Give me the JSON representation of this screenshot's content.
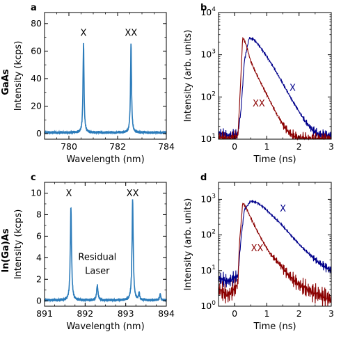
{
  "figure": {
    "row_labels": [
      "GaAs",
      "In(Ga)As"
    ],
    "colors": {
      "spectrum": "#2b7bba",
      "X": "#00008b",
      "XX": "#8b0000"
    }
  },
  "chart_data": [
    {
      "panel": "a",
      "type": "line",
      "xlabel": "Wavelength (nm)",
      "ylabel": "Intensity (kcps)",
      "xlim": [
        779,
        784
      ],
      "ylim": [
        -4,
        88
      ],
      "xticks": [
        780,
        782,
        784
      ],
      "yticks": [
        0,
        20,
        40,
        60,
        80
      ],
      "series": [
        {
          "peaks": [
            {
              "x": 780.6,
              "y": 65,
              "w": 0.025
            },
            {
              "x": 782.55,
              "y": 65,
              "w": 0.025
            }
          ],
          "baseline": 0.8
        }
      ],
      "annotations": [
        {
          "text": "X",
          "x": 780.6,
          "y": 71
        },
        {
          "text": "XX",
          "x": 782.55,
          "y": 71
        }
      ]
    },
    {
      "panel": "b",
      "type": "line",
      "yscale": "log",
      "xlabel": "Time (ns)",
      "ylabel": "Intensity (arb. units)",
      "xlim": [
        -0.5,
        3
      ],
      "ylim": [
        10,
        10000
      ],
      "xticks": [
        0,
        1,
        2,
        3
      ],
      "yticks": [
        10,
        100,
        1000,
        10000
      ],
      "series": [
        {
          "name": "X",
          "color": "#00008b",
          "points": [
            [
              -0.5,
              14
            ],
            [
              -0.2,
              12
            ],
            [
              0.1,
              13
            ],
            [
              0.2,
              50
            ],
            [
              0.3,
              700
            ],
            [
              0.45,
              2500
            ],
            [
              0.6,
              2300
            ],
            [
              0.8,
              1500
            ],
            [
              1.0,
              900
            ],
            [
              1.2,
              520
            ],
            [
              1.4,
              280
            ],
            [
              1.6,
              150
            ],
            [
              1.8,
              80
            ],
            [
              2.0,
              45
            ],
            [
              2.2,
              26
            ],
            [
              2.4,
              17
            ],
            [
              2.6,
              13
            ],
            [
              3.0,
              12
            ]
          ]
        },
        {
          "name": "XX",
          "color": "#8b0000",
          "points": [
            [
              -0.5,
              11
            ],
            [
              -0.2,
              10
            ],
            [
              0.1,
              12
            ],
            [
              0.15,
              60
            ],
            [
              0.25,
              2600
            ],
            [
              0.35,
              1800
            ],
            [
              0.5,
              700
            ],
            [
              0.7,
              320
            ],
            [
              0.9,
              160
            ],
            [
              1.1,
              80
            ],
            [
              1.3,
              40
            ],
            [
              1.5,
              22
            ],
            [
              1.7,
              14
            ],
            [
              1.9,
              11
            ],
            [
              2.2,
              10
            ],
            [
              3.0,
              10
            ]
          ]
        }
      ],
      "annotations": [
        {
          "text": "X",
          "x": 1.8,
          "y": 140,
          "color": "#00008b"
        },
        {
          "text": "XX",
          "x": 0.75,
          "y": 60,
          "color": "#8b0000"
        }
      ]
    },
    {
      "panel": "c",
      "type": "line",
      "xlabel": "Wavelength (nm)",
      "ylabel": "Intensity (kcps)",
      "xlim": [
        891,
        894
      ],
      "ylim": [
        -0.5,
        11
      ],
      "xticks": [
        891,
        892,
        893,
        894
      ],
      "yticks": [
        0,
        2,
        4,
        6,
        8,
        10
      ],
      "series": [
        {
          "peaks": [
            {
              "x": 891.65,
              "y": 8.7,
              "w": 0.018
            },
            {
              "x": 892.3,
              "y": 1.4,
              "w": 0.02
            },
            {
              "x": 893.17,
              "y": 9.3,
              "w": 0.018
            },
            {
              "x": 893.33,
              "y": 0.7,
              "w": 0.015
            },
            {
              "x": 893.85,
              "y": 0.6,
              "w": 0.015
            }
          ],
          "baseline": 0.05
        }
      ],
      "annotations": [
        {
          "text": "X",
          "x": 891.6,
          "y": 9.7
        },
        {
          "text": "XX",
          "x": 893.17,
          "y": 9.7
        },
        {
          "text": "Residual",
          "x": 892.3,
          "y": 3.8
        },
        {
          "text": "Laser",
          "x": 892.3,
          "y": 2.5
        }
      ]
    },
    {
      "panel": "d",
      "type": "line",
      "yscale": "log",
      "xlabel": "Time (ns)",
      "ylabel": "Intensity (arb. units)",
      "xlim": [
        -0.5,
        3
      ],
      "ylim": [
        1,
        3000
      ],
      "xticks": [
        0,
        1,
        2,
        3
      ],
      "yticks": [
        1,
        10,
        100,
        1000
      ],
      "series": [
        {
          "name": "X",
          "color": "#00008b",
          "points": [
            [
              -0.5,
              6
            ],
            [
              -0.2,
              5
            ],
            [
              0.1,
              7
            ],
            [
              0.2,
              80
            ],
            [
              0.3,
              500
            ],
            [
              0.5,
              900
            ],
            [
              0.7,
              800
            ],
            [
              0.9,
              600
            ],
            [
              1.1,
              400
            ],
            [
              1.4,
              220
            ],
            [
              1.7,
              110
            ],
            [
              2.0,
              55
            ],
            [
              2.3,
              30
            ],
            [
              2.6,
              17
            ],
            [
              3.0,
              10
            ]
          ]
        },
        {
          "name": "XX",
          "color": "#8b0000",
          "points": [
            [
              -0.5,
              3
            ],
            [
              -0.2,
              2
            ],
            [
              0.1,
              4
            ],
            [
              0.15,
              60
            ],
            [
              0.25,
              800
            ],
            [
              0.35,
              600
            ],
            [
              0.5,
              300
            ],
            [
              0.7,
              130
            ],
            [
              0.9,
              60
            ],
            [
              1.1,
              30
            ],
            [
              1.4,
              15
            ],
            [
              1.7,
              7
            ],
            [
              2.0,
              4
            ],
            [
              2.4,
              2.5
            ],
            [
              3.0,
              1.5
            ]
          ]
        }
      ],
      "annotations": [
        {
          "text": "X",
          "x": 1.5,
          "y": 450,
          "color": "#00008b"
        },
        {
          "text": "XX",
          "x": 0.7,
          "y": 35,
          "color": "#8b0000"
        }
      ]
    }
  ]
}
